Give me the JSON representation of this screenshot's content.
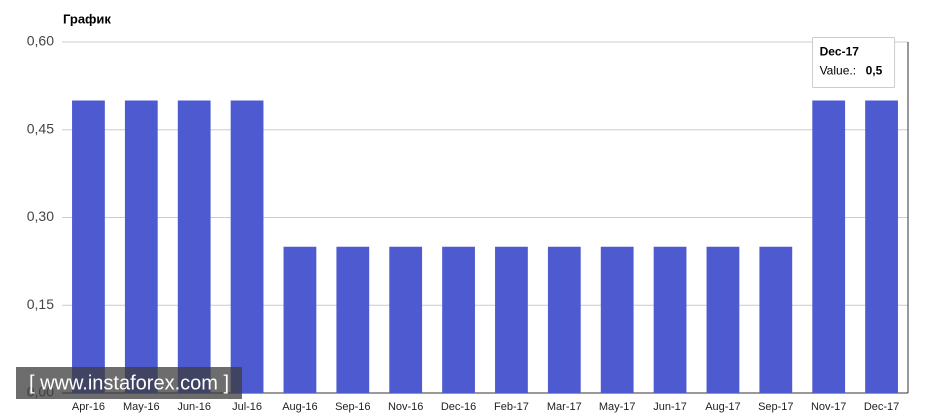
{
  "chart_data": {
    "type": "bar",
    "title": "График",
    "categories": [
      "Apr-16",
      "May-16",
      "Jun-16",
      "Jul-16",
      "Aug-16",
      "Sep-16",
      "Nov-16",
      "Dec-16",
      "Feb-17",
      "Mar-17",
      "May-17",
      "Jun-17",
      "Aug-17",
      "Sep-17",
      "Nov-17",
      "Dec-17"
    ],
    "values": [
      0.5,
      0.5,
      0.5,
      0.5,
      0.25,
      0.25,
      0.25,
      0.25,
      0.25,
      0.25,
      0.25,
      0.25,
      0.25,
      0.25,
      0.5,
      0.5
    ],
    "color": "#4e5acf",
    "ylim": [
      0,
      0.6
    ],
    "yticks": [
      {
        "value": 0,
        "label": "0,00"
      },
      {
        "value": 0.15,
        "label": "0,15"
      },
      {
        "value": 0.3,
        "label": "0,30"
      },
      {
        "value": 0.45,
        "label": "0,45"
      },
      {
        "value": 0.6,
        "label": "0,60"
      }
    ],
    "grid": true,
    "tooltip": {
      "title": "Dec-17",
      "label": "Value.:",
      "value_label": "0,5"
    },
    "watermark": "[ www.instaforex.com ]"
  }
}
